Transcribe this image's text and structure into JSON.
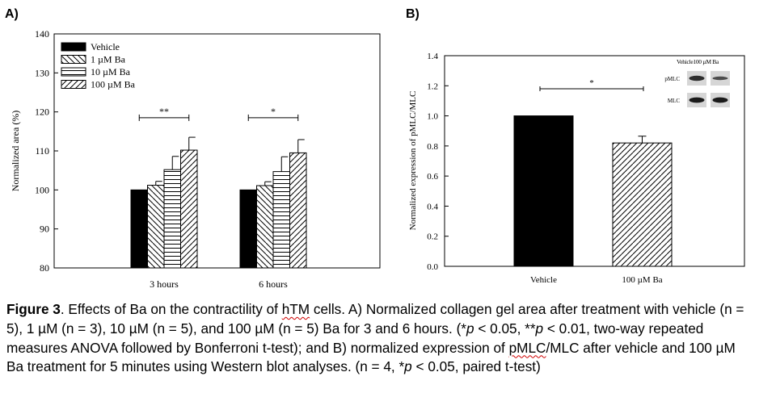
{
  "chart_data": [
    {
      "type": "bar",
      "panel_label": "A)",
      "title": "",
      "xlabel": "",
      "ylabel": "Normalized area (%)",
      "ylim": [
        80,
        140
      ],
      "yticks": [
        "80",
        "90",
        "100",
        "110",
        "120",
        "130",
        "140"
      ],
      "categories": [
        "3 hours",
        "6 hours"
      ],
      "series": [
        {
          "name": "Vehicle",
          "pattern": "solid",
          "values": [
            100,
            100
          ],
          "errors": [
            0,
            0
          ]
        },
        {
          "name": "1 µM Ba",
          "pattern": "backslash",
          "values": [
            101.2,
            101.1
          ],
          "errors": [
            1.0,
            1.0
          ]
        },
        {
          "name": "10 µM Ba",
          "pattern": "horizontal",
          "values": [
            105.2,
            104.7
          ],
          "errors": [
            3.4,
            3.8
          ]
        },
        {
          "name": "100 µM Ba",
          "pattern": "slash",
          "values": [
            110.2,
            109.5
          ],
          "errors": [
            3.3,
            3.4
          ]
        }
      ],
      "legend_position": "top-left",
      "significance": [
        {
          "category": "3 hours",
          "label": "**",
          "level": 118.5
        },
        {
          "category": "6 hours",
          "label": "*",
          "level": 118.5
        }
      ]
    },
    {
      "type": "bar",
      "panel_label": "B)",
      "title": "",
      "xlabel": "",
      "ylabel": "Normalized expression of pMLC/MLC",
      "ylim": [
        0,
        1.4
      ],
      "yticks": [
        "0.0",
        "0.2",
        "0.4",
        "0.6",
        "0.8",
        "1.0",
        "1.2",
        "1.4"
      ],
      "categories": [
        "Vehicle",
        "100 µM Ba"
      ],
      "values": [
        1.0,
        0.82
      ],
      "errors": [
        0,
        0.045
      ],
      "patterns": [
        "solid",
        "slash"
      ],
      "significance": [
        {
          "label": "*",
          "level": 1.18
        }
      ],
      "blot_inset": {
        "column_labels": [
          "Vehicle",
          "100 µM Ba"
        ],
        "row_labels": [
          "pMLC",
          "MLC"
        ]
      }
    }
  ],
  "caption": {
    "figure_label": "Figure 3",
    "segments": [
      {
        "text": ". Effects of Ba on the contractility of ",
        "style": "normal"
      },
      {
        "text": "hTM",
        "style": "underline"
      },
      {
        "text": " cells. A) Normalized collagen gel area after treatment with vehicle (n = 5), 1 µM (n = 3), 10 µM (n = 5), and 100 µM (n = 5) Ba for 3 and 6 hours. (*",
        "style": "normal"
      },
      {
        "text": "p",
        "style": "italic"
      },
      {
        "text": " < 0.05, **",
        "style": "normal"
      },
      {
        "text": "p",
        "style": "italic"
      },
      {
        "text": " < 0.01, two-way repeated measures ANOVA followed by Bonferroni t-test); and B) normalized expression of ",
        "style": "normal"
      },
      {
        "text": "pMLC",
        "style": "underline"
      },
      {
        "text": "/MLC after vehicle and 100 µM Ba treatment for 5 minutes using Western blot analyses. (n = 4, *",
        "style": "normal"
      },
      {
        "text": "p",
        "style": "italic"
      },
      {
        "text": " < 0.05, paired t-test)",
        "style": "normal"
      }
    ]
  }
}
